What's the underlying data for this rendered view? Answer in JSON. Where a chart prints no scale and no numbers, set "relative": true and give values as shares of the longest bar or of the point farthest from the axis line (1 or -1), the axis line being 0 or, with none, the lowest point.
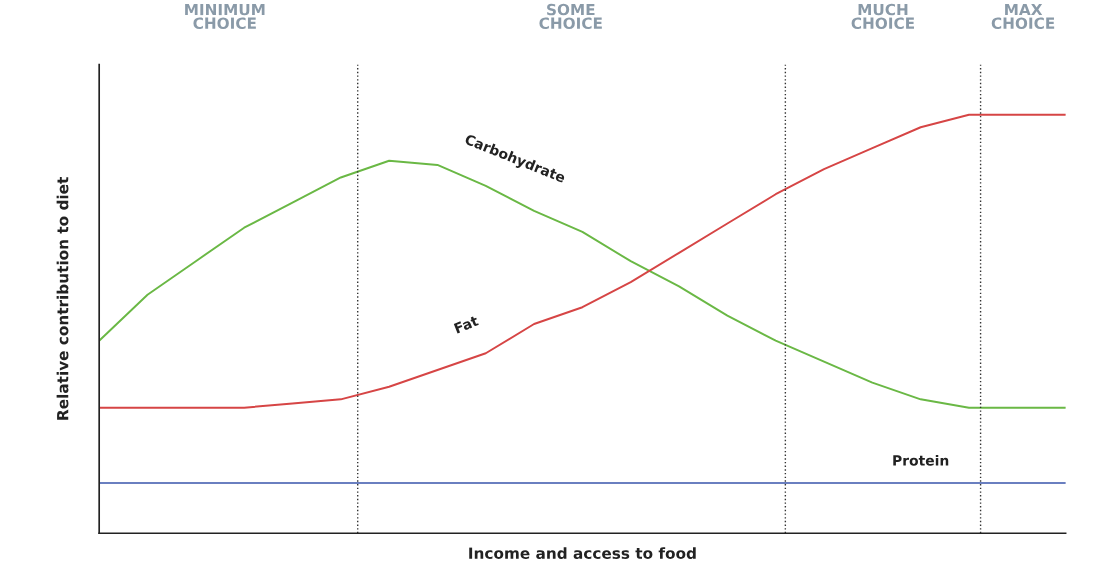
{
  "chart_data": {
    "type": "line",
    "relative": true,
    "xlabel": "Income and access to food",
    "ylabel": "Relative contribution to diet",
    "categories": [
      null,
      null,
      null,
      null,
      null,
      null,
      null,
      null,
      null,
      null,
      null,
      null,
      null,
      null,
      null,
      null,
      null,
      null,
      null,
      null,
      null
    ],
    "series": [
      {
        "name": "Carbohydrate",
        "color": "#6ab845",
        "values": [
          0.46,
          0.57,
          0.65,
          0.73,
          0.79,
          0.85,
          0.89,
          0.88,
          0.83,
          0.77,
          0.72,
          0.65,
          0.59,
          0.52,
          0.46,
          0.41,
          0.36,
          0.32,
          0.3,
          0.3,
          0.3
        ]
      },
      {
        "name": "Fat",
        "color": "#d64545",
        "values": [
          0.3,
          0.3,
          0.3,
          0.3,
          0.31,
          0.32,
          0.35,
          0.39,
          0.43,
          0.5,
          0.54,
          0.6,
          0.67,
          0.74,
          0.81,
          0.87,
          0.92,
          0.97,
          1.0,
          1.0,
          1.0
        ]
      },
      {
        "name": "Protein",
        "color": "#6a7fc0",
        "values": [
          0.12,
          0.12,
          0.12,
          0.12,
          0.12,
          0.12,
          0.12,
          0.12,
          0.12,
          0.12,
          0.12,
          0.12,
          0.12,
          0.12,
          0.12,
          0.12,
          0.12,
          0.12,
          0.12,
          0.12,
          0.12
        ]
      }
    ],
    "annotations": [
      "MINIMUM\nCHOICE",
      "SOME\nCHOICE",
      "MUCH\nCHOICE",
      "MAX\nCHOICE"
    ],
    "line_style": "solid",
    "marker": "none",
    "legend": false
  }
}
